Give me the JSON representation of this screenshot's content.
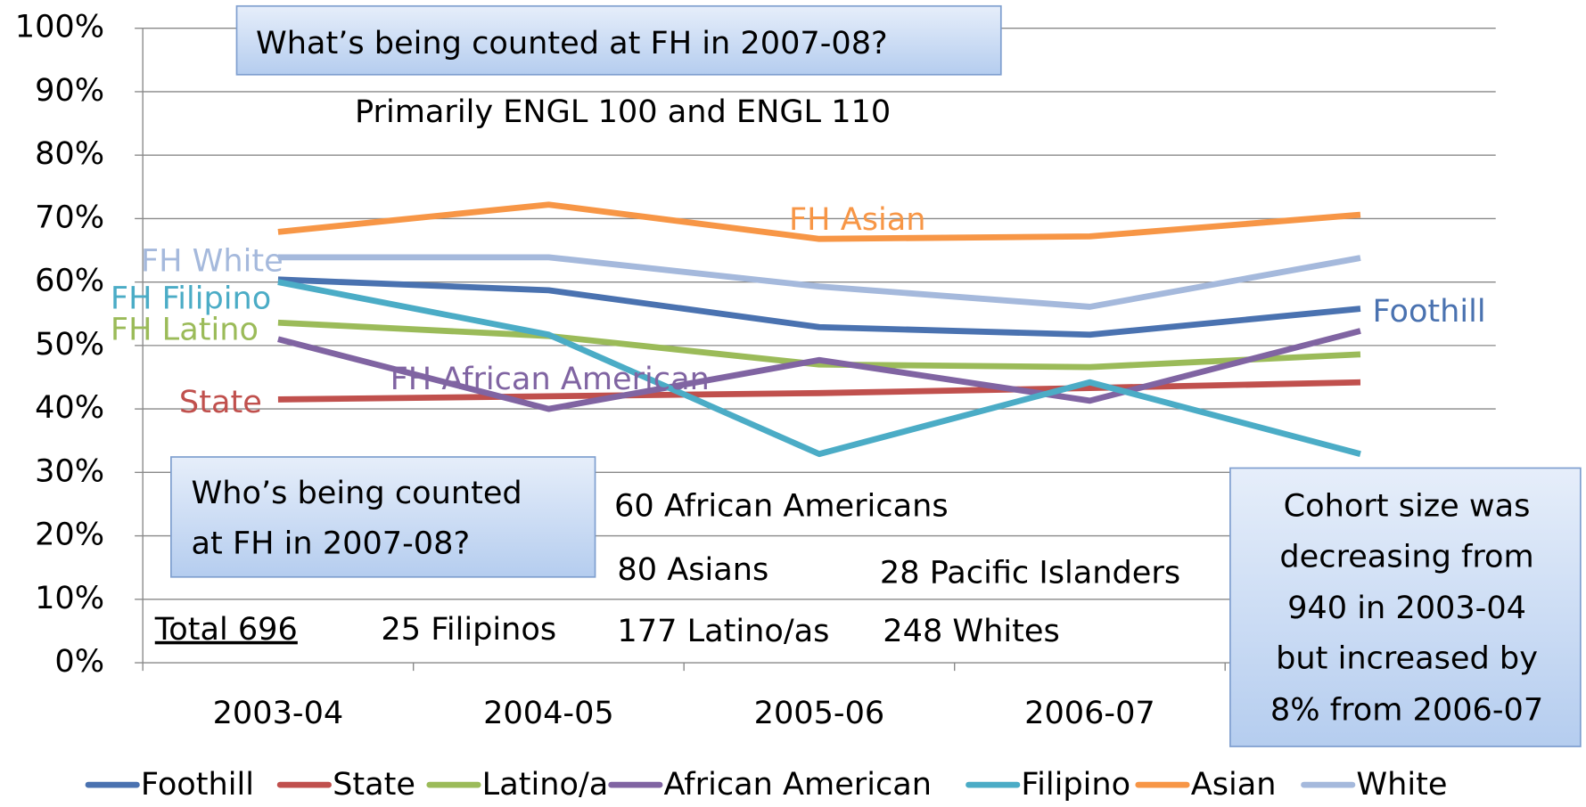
{
  "chart_data": {
    "type": "line",
    "categories": [
      "2003-04",
      "2004-05",
      "2005-06",
      "2006-07",
      null
    ],
    "ylim": [
      0,
      100
    ],
    "yticks": [
      {
        "value": 0,
        "label": "0%"
      },
      {
        "value": 10,
        "label": "10%"
      },
      {
        "value": 20,
        "label": "20%"
      },
      {
        "value": 30,
        "label": "30%"
      },
      {
        "value": 40,
        "label": "40%"
      },
      {
        "value": 50,
        "label": "50%"
      },
      {
        "value": 60,
        "label": "60%"
      },
      {
        "value": 70,
        "label": "70%"
      },
      {
        "value": 80,
        "label": "80%"
      },
      {
        "value": 90,
        "label": "90%"
      },
      {
        "value": 100,
        "label": "100%"
      }
    ],
    "grid": true,
    "legend": "bottom",
    "series": [
      {
        "name": "Foothill",
        "label": "Foothill",
        "color": "#4a72b0",
        "values": [
          60.4,
          58.7,
          52.9,
          51.7,
          55.8
        ]
      },
      {
        "name": "State",
        "label": "State",
        "color": "#c0504d",
        "values": [
          41.5,
          42,
          42.5,
          43.3,
          44.2
        ]
      },
      {
        "name": "Latino/a",
        "label": "FH Latino",
        "color": "#9bbb59",
        "values": [
          53.6,
          51.5,
          47,
          46.6,
          48.6
        ]
      },
      {
        "name": "African American",
        "label": "FH African American",
        "color": "#8064a2",
        "values": [
          51,
          40,
          47.7,
          41.3,
          52.3
        ]
      },
      {
        "name": "Filipino",
        "label": "FH Filipino",
        "color": "#4bacc6",
        "values": [
          60,
          51.7,
          32.9,
          44.2,
          32.9
        ]
      },
      {
        "name": "Asian",
        "label": "FH Asian",
        "color": "#f79646",
        "values": [
          67.9,
          72.2,
          66.8,
          67.2,
          70.6
        ]
      },
      {
        "name": "White",
        "label": "FH White",
        "color": "#a5b9dc",
        "values": [
          63.9,
          63.9,
          59.3,
          56.1,
          63.8
        ]
      }
    ],
    "annotations": [
      {
        "lines": [
          "What’s being counted at FH in 2007-08?"
        ]
      },
      {
        "lines": [
          "Primarily ENGL 100 and ENGL 110"
        ]
      },
      {
        "lines": [
          "Who’s being counted",
          "at FH in 2007-08?"
        ]
      },
      {
        "lines": [
          "60 African Americans"
        ]
      },
      {
        "lines": [
          "80 Asians"
        ]
      },
      {
        "lines": [
          "28 Pacific Islanders"
        ]
      },
      {
        "lines": [
          "Total 696"
        ]
      },
      {
        "lines": [
          "25 Filipinos"
        ]
      },
      {
        "lines": [
          "177 Latino/as"
        ]
      },
      {
        "lines": [
          "248 Whites"
        ]
      },
      {
        "lines": [
          "Cohort size was",
          "decreasing from",
          "940 in 2003-04",
          "but increased by",
          "8% from 2006-07"
        ]
      }
    ]
  }
}
